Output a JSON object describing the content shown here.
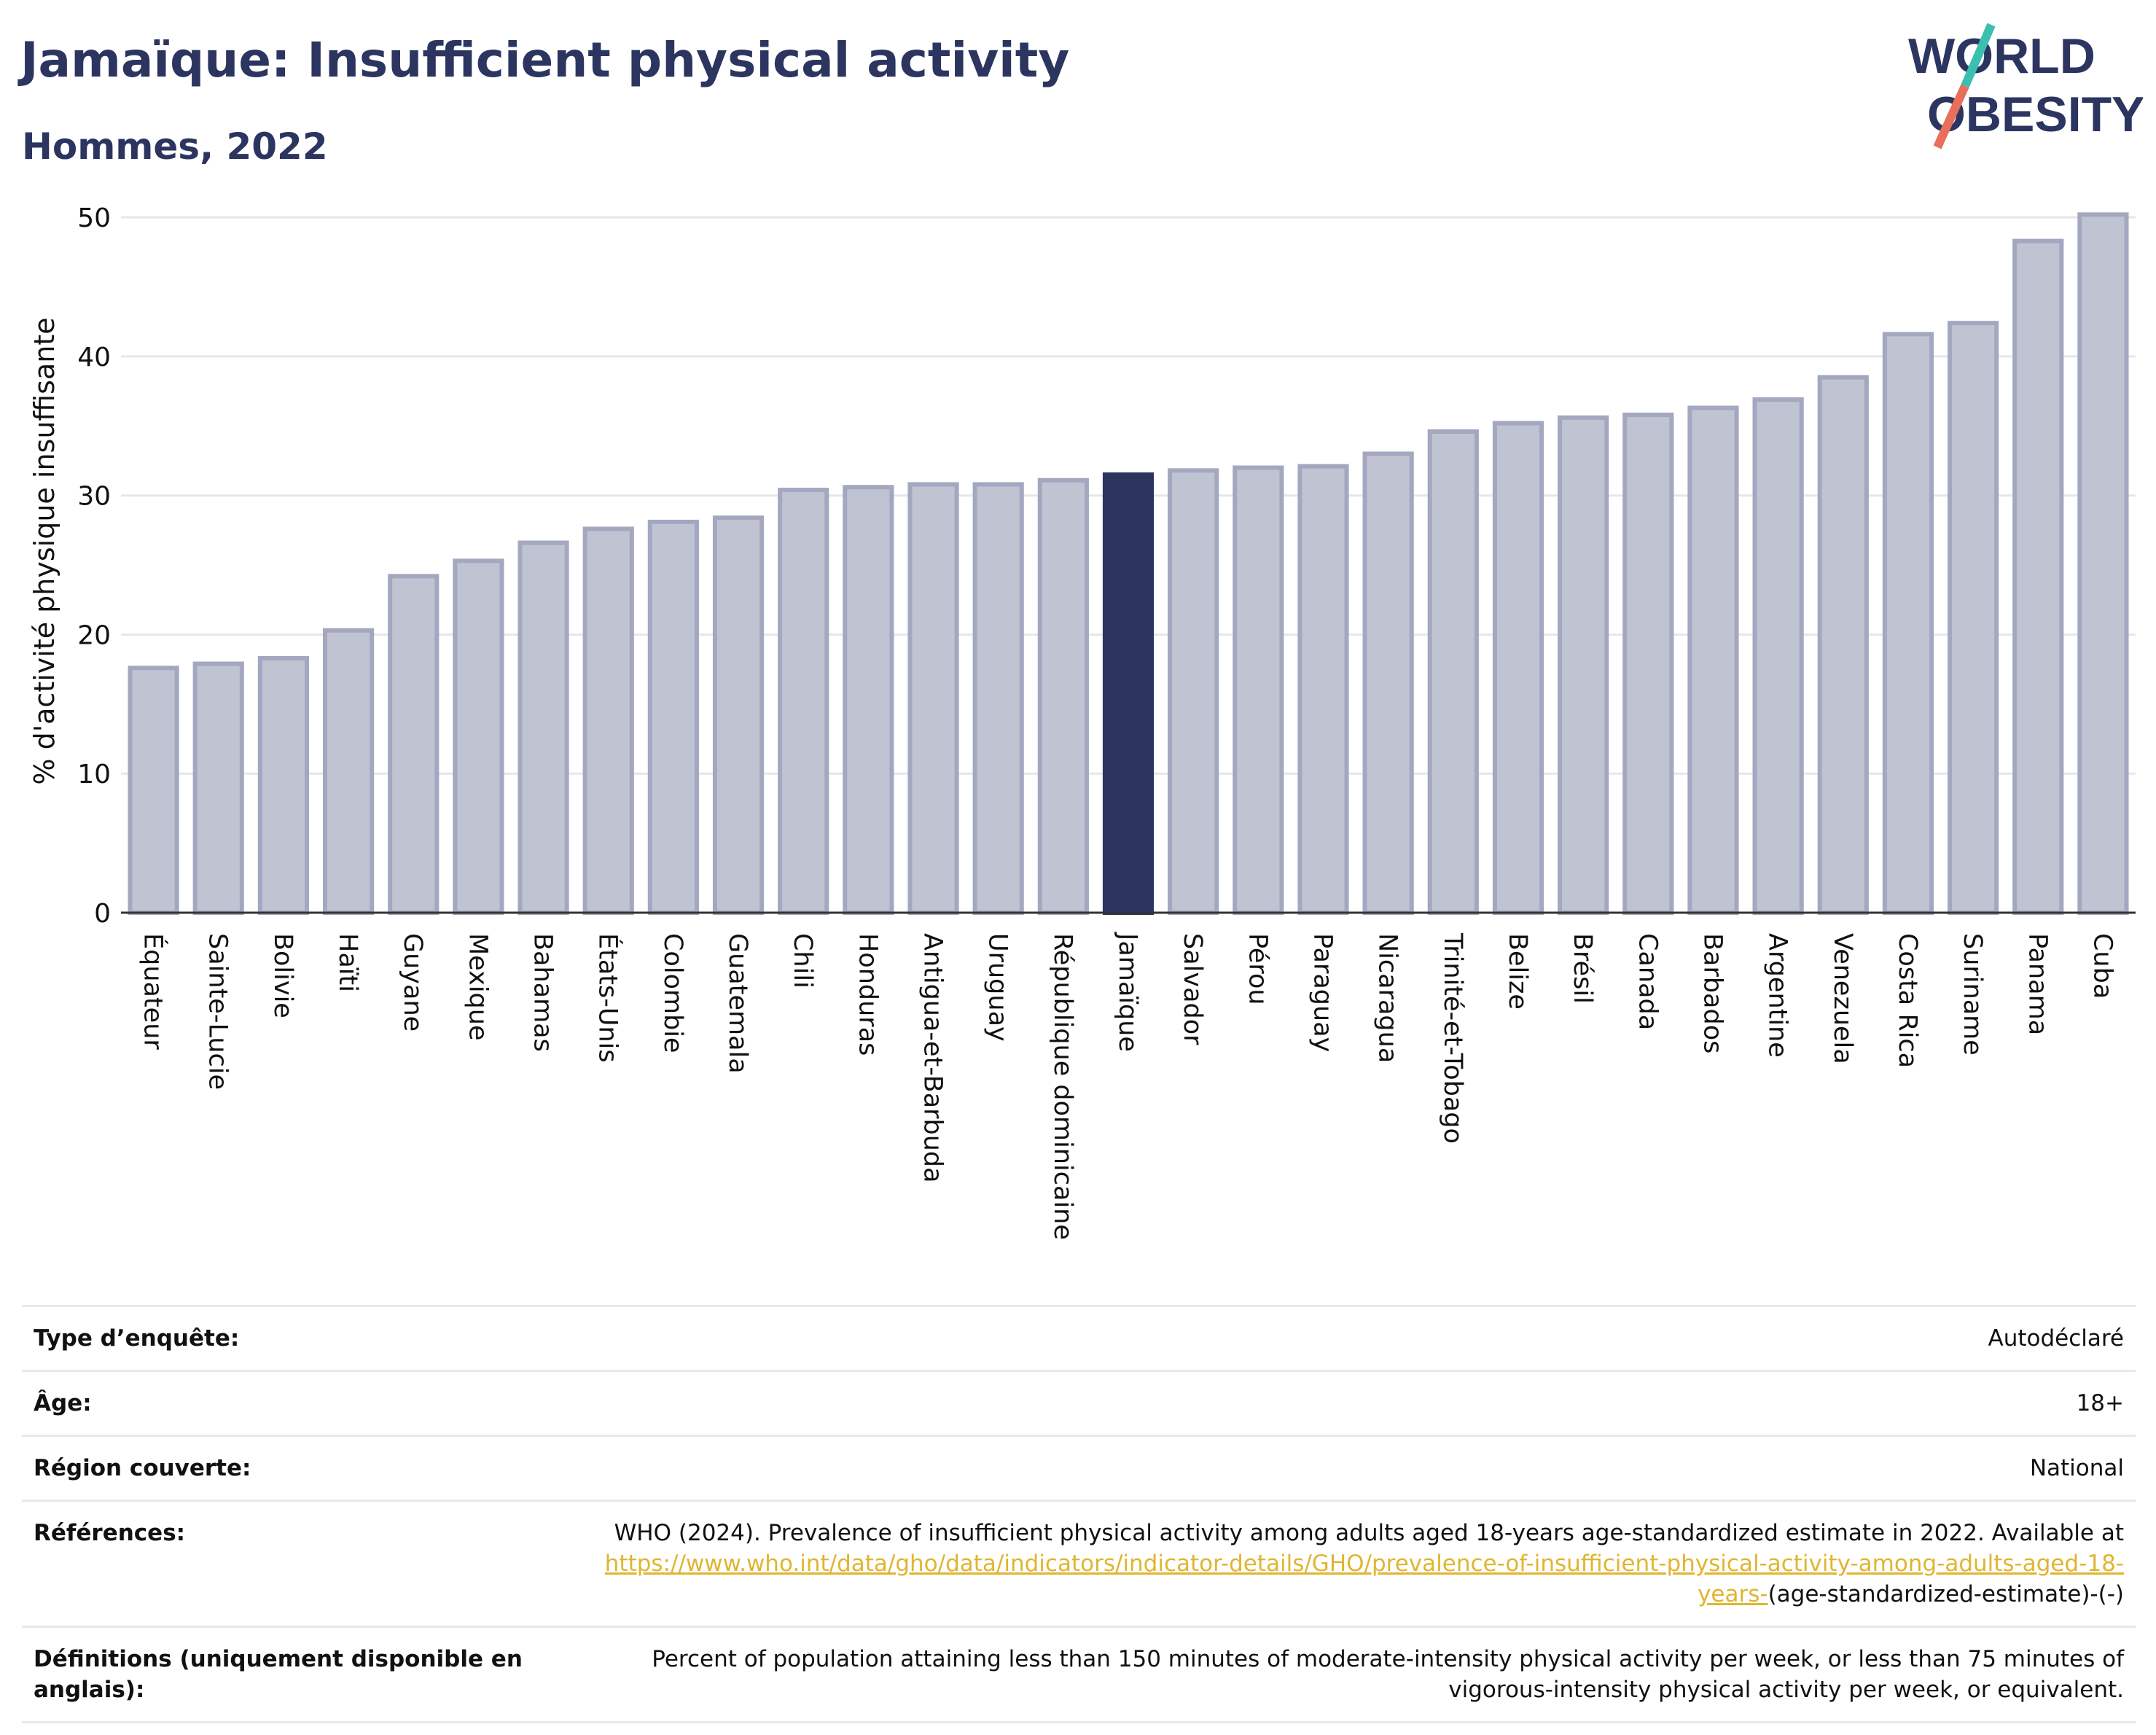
{
  "header": {
    "title": "Jamaïque: Insufficient physical activity",
    "subtitle": "Hommes, 2022"
  },
  "logo": {
    "line1": "WORLD",
    "line2": "OBESITY",
    "slash_color_top": "#3bbfb0",
    "slash_color_bottom": "#e8705a"
  },
  "chart_data": {
    "type": "bar",
    "ylabel": "% d'activité physique insuffisante",
    "xlabel": "",
    "ylim": [
      0,
      52
    ],
    "yticks": [
      0,
      10,
      20,
      30,
      40,
      50
    ],
    "grid": true,
    "highlight": "Jamaïque",
    "colors": {
      "bar": "#c0c3d1",
      "bar_edge": "#a3a7c0",
      "highlight": "#2b3560"
    },
    "categories": [
      "Équateur",
      "Sainte-Lucie",
      "Bolivie",
      "Haïti",
      "Guyane",
      "Mexique",
      "Bahamas",
      "États-Unis",
      "Colombie",
      "Guatemala",
      "Chili",
      "Honduras",
      "Antigua-et-Barbuda",
      "Uruguay",
      "République dominicaine",
      "Jamaïque",
      "Salvador",
      "Pérou",
      "Paraguay",
      "Nicaragua",
      "Trinité-et-Tobago",
      "Belize",
      "Brésil",
      "Canada",
      "Barbados",
      "Argentine",
      "Venezuela",
      "Costa Rica",
      "Suriname",
      "Panama",
      "Cuba"
    ],
    "values": [
      17.6,
      17.9,
      18.3,
      20.3,
      24.2,
      25.3,
      26.6,
      27.6,
      28.1,
      28.4,
      30.4,
      30.6,
      30.8,
      30.8,
      31.1,
      31.5,
      31.8,
      32.0,
      32.1,
      33.0,
      34.6,
      35.2,
      35.6,
      35.8,
      36.3,
      36.9,
      38.5,
      41.6,
      42.4,
      48.3,
      50.2
    ]
  },
  "info": {
    "survey_type": {
      "label": "Type d’enquête:",
      "value": "Autodéclaré"
    },
    "age": {
      "label": "Âge:",
      "value": "18+"
    },
    "region": {
      "label": "Région couverte:",
      "value": "National"
    },
    "references": {
      "label": "Références:",
      "text": "WHO (2024). Prevalence of insufficient physical activity among adults aged 18-years age-standardized estimate in 2022. Available at",
      "link": "https://www.who.int/data/gho/data/indicators/indicator-details/GHO/prevalence-of-insufficient-physical-activity-among-adults-aged-18-years-",
      "suffix": "(age-standardized-estimate)-(-)"
    },
    "definitions": {
      "label": "Définitions (uniquement disponible en anglais):",
      "value": "Percent of population attaining less than 150 minutes of moderate-intensity physical activity per week, or less than 75 minutes of vigorous-intensity physical activity per week, or equivalent."
    }
  }
}
